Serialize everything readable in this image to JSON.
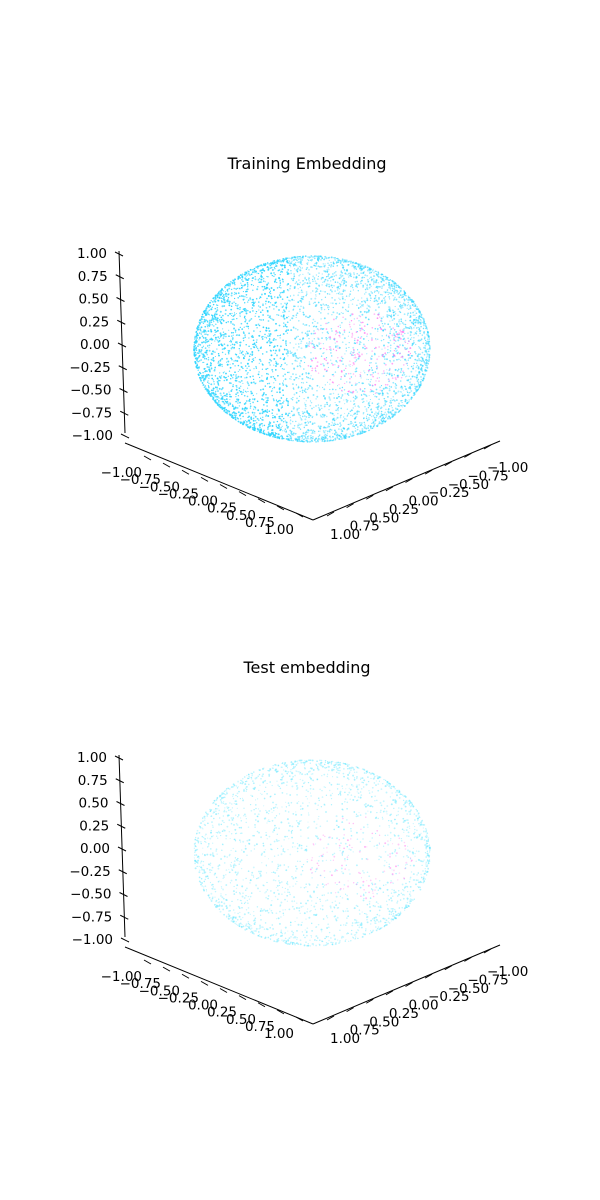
{
  "figure": {
    "background": "#ffffff"
  },
  "chart_data": [
    {
      "type": "scatter",
      "projection": "3d",
      "title": "Training Embedding",
      "xlim": [
        -1.0,
        1.0
      ],
      "ylim": [
        -1.0,
        1.0
      ],
      "zlim": [
        -1.0,
        1.0
      ],
      "x_ticks": [
        "−1.00",
        "−0.75",
        "−0.50",
        "−0.25",
        "0.00",
        "0.25",
        "0.50",
        "0.75",
        "1.00"
      ],
      "y_ticks": [
        "−1.00",
        "−0.75",
        "−0.50",
        "−0.25",
        "0.00",
        "0.25",
        "0.50",
        "0.75",
        "1.00"
      ],
      "z_ticks": [
        "−1.00",
        "−0.75",
        "−0.50",
        "−0.25",
        "0.00",
        "0.25",
        "0.50",
        "0.75",
        "1.00"
      ],
      "points": "unit sphere surface, dense",
      "density": 0.9,
      "colors": {
        "primary": "#33d6ff",
        "secondary": "#ff66ee"
      },
      "grid": false,
      "legend": "none"
    },
    {
      "type": "scatter",
      "projection": "3d",
      "title": "Test embedding",
      "xlim": [
        -1.0,
        1.0
      ],
      "ylim": [
        -1.0,
        1.0
      ],
      "zlim": [
        -1.0,
        1.0
      ],
      "x_ticks": [
        "−1.00",
        "−0.75",
        "−0.50",
        "−0.25",
        "0.00",
        "0.25",
        "0.50",
        "0.75",
        "1.00"
      ],
      "y_ticks": [
        "−1.00",
        "−0.75",
        "−0.50",
        "−0.25",
        "0.00",
        "0.25",
        "0.50",
        "0.75",
        "1.00"
      ],
      "z_ticks": [
        "−1.00",
        "−0.75",
        "−0.50",
        "−0.25",
        "0.00",
        "0.25",
        "0.50",
        "0.75",
        "1.00"
      ],
      "points": "unit sphere surface, sparse",
      "density": 0.45,
      "colors": {
        "primary": "#5ee6ff",
        "secondary": "#ff77ee"
      },
      "grid": false,
      "legend": "none"
    }
  ]
}
